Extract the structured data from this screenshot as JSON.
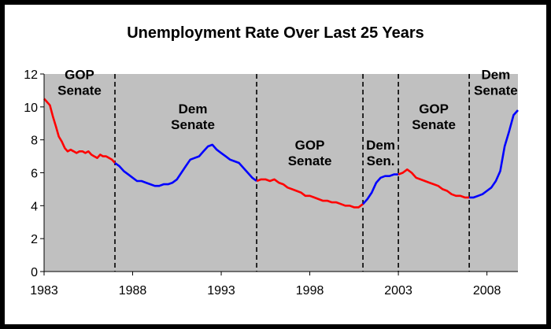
{
  "chart_data": {
    "type": "line",
    "title": "Unemployment Rate Over Last 25 Years",
    "xlabel": "",
    "ylabel": "",
    "xlim": [
      1983.0,
      2009.75
    ],
    "ylim": [
      0,
      12
    ],
    "y_ticks": [
      0,
      2,
      4,
      6,
      8,
      10,
      12
    ],
    "x_ticks": [
      1983,
      1988,
      1993,
      1998,
      2003,
      2008
    ],
    "grid": false,
    "plot_background": "#c0c0c0",
    "colors": {
      "GOP": "#ff0000",
      "Dem": "#0000ff"
    },
    "boundaries": [
      1987.0,
      1995.0,
      2001.0,
      2003.0,
      2007.0
    ],
    "regions": [
      {
        "start": 1983.0,
        "end": 1987.0,
        "party": "GOP",
        "label": [
          "GOP",
          "Senate"
        ],
        "label_x": 1985.0,
        "label_y": 11.7
      },
      {
        "start": 1987.0,
        "end": 1995.0,
        "party": "Dem",
        "label": [
          "Dem",
          "Senate"
        ],
        "label_x": 1991.4,
        "label_y": 9.6
      },
      {
        "start": 1995.0,
        "end": 2001.0,
        "party": "GOP",
        "label": [
          "GOP",
          "Senate"
        ],
        "label_x": 1998.0,
        "label_y": 7.4
      },
      {
        "start": 2001.0,
        "end": 2003.0,
        "party": "Dem",
        "label": [
          "Dem",
          "Sen."
        ],
        "label_x": 2002.0,
        "label_y": 7.4
      },
      {
        "start": 2003.0,
        "end": 2007.0,
        "party": "GOP",
        "label": [
          "GOP",
          "Senate"
        ],
        "label_x": 2005.0,
        "label_y": 9.6
      },
      {
        "start": 2007.0,
        "end": 2009.75,
        "party": "Dem",
        "label": [
          "Dem",
          "Senate"
        ],
        "label_x": 2008.5,
        "label_y": 11.7
      }
    ],
    "series": [
      {
        "x": [
          1983.0,
          1983.17,
          1983.33,
          1983.5,
          1983.67,
          1983.83,
          1984.0,
          1984.17,
          1984.33,
          1984.5,
          1984.67,
          1984.83,
          1985.0,
          1985.17,
          1985.33,
          1985.5,
          1985.67,
          1985.83,
          1986.0,
          1986.17,
          1986.33,
          1986.5,
          1986.67,
          1986.83,
          1987.0,
          1987.25,
          1987.5,
          1987.75,
          1988.0,
          1988.25,
          1988.5,
          1988.75,
          1989.0,
          1989.25,
          1989.5,
          1989.75,
          1990.0,
          1990.25,
          1990.5,
          1990.75,
          1991.0,
          1991.25,
          1991.5,
          1991.75,
          1992.0,
          1992.25,
          1992.5,
          1992.75,
          1993.0,
          1993.25,
          1993.5,
          1993.75,
          1994.0,
          1994.25,
          1994.5,
          1994.75,
          1995.0,
          1995.25,
          1995.5,
          1995.75,
          1996.0,
          1996.25,
          1996.5,
          1996.75,
          1997.0,
          1997.25,
          1997.5,
          1997.75,
          1998.0,
          1998.25,
          1998.5,
          1998.75,
          1999.0,
          1999.25,
          1999.5,
          1999.75,
          2000.0,
          2000.25,
          2000.5,
          2000.75,
          2001.0,
          2001.25,
          2001.5,
          2001.75,
          2002.0,
          2002.25,
          2002.5,
          2002.75,
          2003.0,
          2003.25,
          2003.5,
          2003.75,
          2004.0,
          2004.25,
          2004.5,
          2004.75,
          2005.0,
          2005.25,
          2005.5,
          2005.75,
          2006.0,
          2006.25,
          2006.5,
          2006.75,
          2007.0,
          2007.25,
          2007.5,
          2007.75,
          2008.0,
          2008.25,
          2008.5,
          2008.75,
          2009.0,
          2009.25,
          2009.5,
          2009.75
        ],
        "y": [
          10.5,
          10.3,
          10.1,
          9.4,
          8.8,
          8.2,
          7.9,
          7.5,
          7.3,
          7.4,
          7.3,
          7.2,
          7.3,
          7.3,
          7.2,
          7.3,
          7.1,
          7.0,
          6.9,
          7.1,
          7.0,
          7.0,
          6.9,
          6.8,
          6.6,
          6.4,
          6.1,
          5.9,
          5.7,
          5.5,
          5.5,
          5.4,
          5.3,
          5.2,
          5.2,
          5.3,
          5.3,
          5.4,
          5.6,
          6.0,
          6.4,
          6.8,
          6.9,
          7.0,
          7.3,
          7.6,
          7.7,
          7.4,
          7.2,
          7.0,
          6.8,
          6.7,
          6.6,
          6.3,
          6.0,
          5.7,
          5.5,
          5.6,
          5.6,
          5.5,
          5.6,
          5.4,
          5.3,
          5.1,
          5.0,
          4.9,
          4.8,
          4.6,
          4.6,
          4.5,
          4.4,
          4.3,
          4.3,
          4.2,
          4.2,
          4.1,
          4.0,
          4.0,
          3.9,
          3.9,
          4.1,
          4.4,
          4.8,
          5.4,
          5.7,
          5.8,
          5.8,
          5.9,
          5.9,
          6.0,
          6.2,
          6.0,
          5.7,
          5.6,
          5.5,
          5.4,
          5.3,
          5.2,
          5.0,
          4.9,
          4.7,
          4.6,
          4.6,
          4.5,
          4.5,
          4.5,
          4.6,
          4.7,
          4.9,
          5.1,
          5.5,
          6.1,
          7.6,
          8.5,
          9.5,
          9.8
        ]
      }
    ]
  }
}
